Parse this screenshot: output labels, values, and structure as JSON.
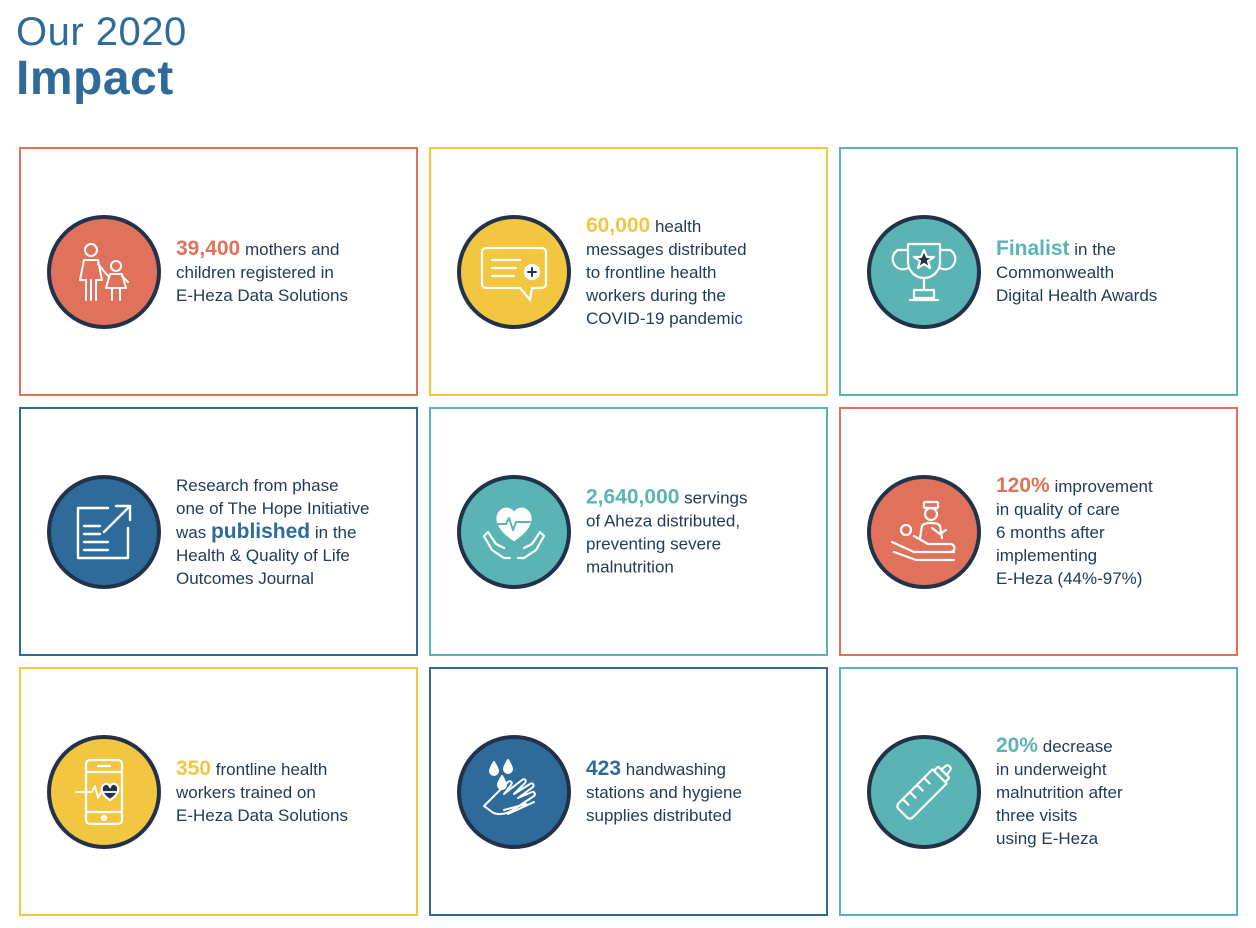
{
  "header": {
    "line1": "Our 2020",
    "line2": "Impact"
  },
  "colors": {
    "orange": "#e0725b",
    "yellow": "#f2c641",
    "teal": "#5ab4b4",
    "blue": "#2f6b9a",
    "dark": "#22324a",
    "text": "#1f3a57"
  },
  "cards": [
    {
      "icon": "mother-child-icon",
      "highlight": "39,400",
      "lines": [
        "mothers and",
        "children registered in",
        "E-Heza Data Solutions"
      ]
    },
    {
      "icon": "message-bubble-icon",
      "highlight": "60,000",
      "lines": [
        "health",
        "messages distributed",
        "to frontline health",
        "workers during the",
        "COVID-19 pandemic"
      ]
    },
    {
      "icon": "trophy-icon",
      "highlight": "Finalist",
      "lines": [
        "in the",
        "Commonwealth",
        "Digital Health Awards"
      ]
    },
    {
      "icon": "publication-icon",
      "highlight": "published",
      "lines": [
        "Research from phase",
        "one of The Hope Initiative",
        "was",
        "in the",
        "Health & Quality of Life",
        "Outcomes Journal"
      ]
    },
    {
      "icon": "heart-hands-icon",
      "highlight": "2,640,000",
      "lines": [
        "servings",
        "of Aheza distributed,",
        "preventing severe",
        "malnutrition"
      ]
    },
    {
      "icon": "nurse-patient-icon",
      "highlight": "120%",
      "lines": [
        "improvement",
        "in quality of care",
        "6 months after",
        "implementing",
        "E-Heza (44%-97%)"
      ]
    },
    {
      "icon": "phone-heart-icon",
      "highlight": "350",
      "lines": [
        "frontline health",
        "workers trained on",
        "E-Heza Data Solutions"
      ]
    },
    {
      "icon": "handwashing-icon",
      "highlight": "423",
      "lines": [
        "handwashing",
        "stations and hygiene",
        "supplies distributed"
      ]
    },
    {
      "icon": "baby-bottle-icon",
      "highlight": "20%",
      "lines": [
        "decrease",
        "in underweight",
        "malnutrition after",
        "three visits",
        "using E-Heza"
      ]
    }
  ]
}
